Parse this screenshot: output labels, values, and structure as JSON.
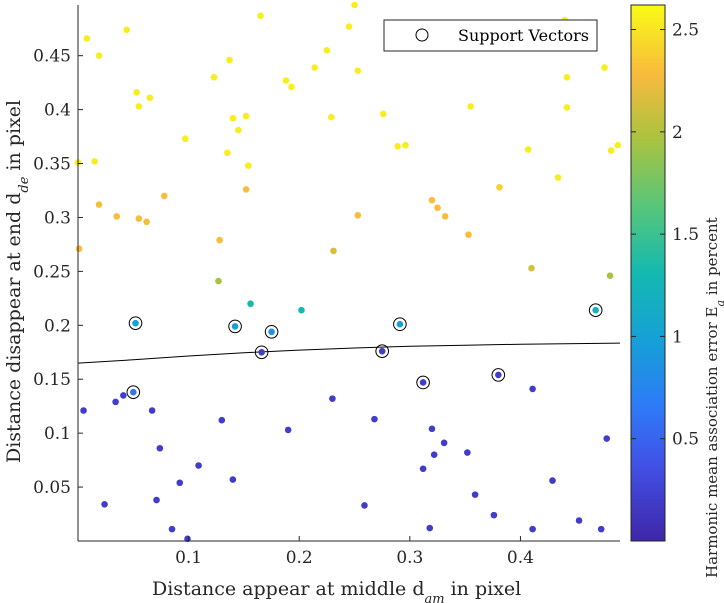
{
  "chart_data": {
    "type": "scatter",
    "xlabel": "Distance appear at middle d",
    "xlabel_sub": "am",
    "xlabel_suffix": " in pixel",
    "ylabel": "Distance disappear at end d",
    "ylabel_sub": "de",
    "ylabel_suffix": " in pixel",
    "colorbar_label": "Harmonic mean association error E",
    "colorbar_label_sub": "a",
    "colorbar_label_suffix": " in percent",
    "xlim": [
      0.0,
      0.49
    ],
    "ylim": [
      0.0,
      0.497
    ],
    "clim": [
      0.0,
      2.62
    ],
    "colormap": "parula",
    "xticks": [
      0.1,
      0.2,
      0.3,
      0.4
    ],
    "xtick_labels": [
      "0.1",
      "0.2",
      "0.3",
      "0.4"
    ],
    "yticks": [
      0.05,
      0.1,
      0.15,
      0.2,
      0.25,
      0.3,
      0.35,
      0.4,
      0.45
    ],
    "ytick_labels": [
      "0.05",
      "0.1",
      "0.15",
      "0.2",
      "0.25",
      "0.3",
      "0.35",
      "0.4",
      "0.45"
    ],
    "cticks": [
      0.5,
      1.0,
      1.5,
      2.0,
      2.5
    ],
    "ctick_labels": [
      "0.5",
      "1",
      "1.5",
      "2",
      "2.5"
    ],
    "legend": {
      "entries": [
        "Support Vectors"
      ],
      "location": "top-right"
    },
    "points": [
      {
        "x": 0.008,
        "y": 0.466,
        "c": 2.55
      },
      {
        "x": 0.019,
        "y": 0.45,
        "c": 2.55
      },
      {
        "x": 0.044,
        "y": 0.474,
        "c": 2.55
      },
      {
        "x": 0.053,
        "y": 0.416,
        "c": 2.55
      },
      {
        "x": 0.065,
        "y": 0.411,
        "c": 2.55
      },
      {
        "x": 0.055,
        "y": 0.403,
        "c": 2.55
      },
      {
        "x": 0.0,
        "y": 0.351,
        "c": 2.55
      },
      {
        "x": 0.015,
        "y": 0.352,
        "c": 2.55
      },
      {
        "x": 0.019,
        "y": 0.312,
        "c": 2.3
      },
      {
        "x": 0.035,
        "y": 0.301,
        "c": 2.3
      },
      {
        "x": 0.055,
        "y": 0.299,
        "c": 2.3
      },
      {
        "x": 0.062,
        "y": 0.296,
        "c": 2.3
      },
      {
        "x": 0.078,
        "y": 0.32,
        "c": 2.3
      },
      {
        "x": 0.001,
        "y": 0.271,
        "c": 2.3
      },
      {
        "x": 0.128,
        "y": 0.279,
        "c": 2.3
      },
      {
        "x": 0.127,
        "y": 0.241,
        "c": 1.95
      },
      {
        "x": 0.156,
        "y": 0.22,
        "c": 1.3
      },
      {
        "x": 0.202,
        "y": 0.214,
        "c": 1.3
      },
      {
        "x": 0.052,
        "y": 0.202,
        "c": 1.0,
        "sv": true
      },
      {
        "x": 0.142,
        "y": 0.199,
        "c": 1.0,
        "sv": true
      },
      {
        "x": 0.175,
        "y": 0.194,
        "c": 0.85,
        "sv": true
      },
      {
        "x": 0.291,
        "y": 0.201,
        "c": 1.0,
        "sv": true
      },
      {
        "x": 0.468,
        "y": 0.214,
        "c": 1.2,
        "sv": true
      },
      {
        "x": 0.166,
        "y": 0.175,
        "c": 0.2,
        "sv": true
      },
      {
        "x": 0.275,
        "y": 0.176,
        "c": 0.2,
        "sv": true
      },
      {
        "x": 0.05,
        "y": 0.138,
        "c": 0.6,
        "sv": true
      },
      {
        "x": 0.312,
        "y": 0.147,
        "c": 0.2,
        "sv": true
      },
      {
        "x": 0.38,
        "y": 0.154,
        "c": 0.2,
        "sv": true
      },
      {
        "x": 0.097,
        "y": 0.373,
        "c": 2.55
      },
      {
        "x": 0.123,
        "y": 0.43,
        "c": 2.55
      },
      {
        "x": 0.137,
        "y": 0.446,
        "c": 2.55
      },
      {
        "x": 0.14,
        "y": 0.392,
        "c": 2.55
      },
      {
        "x": 0.145,
        "y": 0.381,
        "c": 2.55
      },
      {
        "x": 0.135,
        "y": 0.36,
        "c": 2.55
      },
      {
        "x": 0.152,
        "y": 0.394,
        "c": 2.55
      },
      {
        "x": 0.154,
        "y": 0.348,
        "c": 2.55
      },
      {
        "x": 0.152,
        "y": 0.326,
        "c": 2.3
      },
      {
        "x": 0.165,
        "y": 0.487,
        "c": 2.55
      },
      {
        "x": 0.188,
        "y": 0.427,
        "c": 2.55
      },
      {
        "x": 0.193,
        "y": 0.421,
        "c": 2.55
      },
      {
        "x": 0.214,
        "y": 0.439,
        "c": 2.55
      },
      {
        "x": 0.225,
        "y": 0.455,
        "c": 2.55
      },
      {
        "x": 0.229,
        "y": 0.393,
        "c": 2.55
      },
      {
        "x": 0.245,
        "y": 0.477,
        "c": 2.55
      },
      {
        "x": 0.25,
        "y": 0.497,
        "c": 2.55
      },
      {
        "x": 0.253,
        "y": 0.436,
        "c": 2.55
      },
      {
        "x": 0.253,
        "y": 0.302,
        "c": 2.3
      },
      {
        "x": 0.231,
        "y": 0.269,
        "c": 2.15
      },
      {
        "x": 0.276,
        "y": 0.396,
        "c": 2.55
      },
      {
        "x": 0.289,
        "y": 0.366,
        "c": 2.55
      },
      {
        "x": 0.296,
        "y": 0.367,
        "c": 2.55
      },
      {
        "x": 0.32,
        "y": 0.316,
        "c": 2.3
      },
      {
        "x": 0.325,
        "y": 0.309,
        "c": 2.3
      },
      {
        "x": 0.332,
        "y": 0.301,
        "c": 2.3
      },
      {
        "x": 0.355,
        "y": 0.403,
        "c": 2.55
      },
      {
        "x": 0.353,
        "y": 0.284,
        "c": 2.3
      },
      {
        "x": 0.381,
        "y": 0.328,
        "c": 2.4
      },
      {
        "x": 0.407,
        "y": 0.363,
        "c": 2.55
      },
      {
        "x": 0.41,
        "y": 0.253,
        "c": 2.15
      },
      {
        "x": 0.434,
        "y": 0.337,
        "c": 2.55
      },
      {
        "x": 0.44,
        "y": 0.483,
        "c": 2.55
      },
      {
        "x": 0.442,
        "y": 0.43,
        "c": 2.55
      },
      {
        "x": 0.442,
        "y": 0.402,
        "c": 2.55
      },
      {
        "x": 0.476,
        "y": 0.439,
        "c": 2.55
      },
      {
        "x": 0.482,
        "y": 0.362,
        "c": 2.55
      },
      {
        "x": 0.488,
        "y": 0.367,
        "c": 2.55
      },
      {
        "x": 0.481,
        "y": 0.246,
        "c": 1.95
      },
      {
        "x": 0.005,
        "y": 0.121,
        "c": 0.2
      },
      {
        "x": 0.024,
        "y": 0.034,
        "c": 0.2
      },
      {
        "x": 0.034,
        "y": 0.129,
        "c": 0.2
      },
      {
        "x": 0.041,
        "y": 0.135,
        "c": 0.2
      },
      {
        "x": 0.067,
        "y": 0.121,
        "c": 0.2
      },
      {
        "x": 0.074,
        "y": 0.086,
        "c": 0.2
      },
      {
        "x": 0.071,
        "y": 0.038,
        "c": 0.2
      },
      {
        "x": 0.085,
        "y": 0.011,
        "c": 0.2
      },
      {
        "x": 0.092,
        "y": 0.054,
        "c": 0.2
      },
      {
        "x": 0.109,
        "y": 0.07,
        "c": 0.2
      },
      {
        "x": 0.099,
        "y": 0.002,
        "c": 0.2
      },
      {
        "x": 0.13,
        "y": 0.112,
        "c": 0.2
      },
      {
        "x": 0.14,
        "y": 0.057,
        "c": 0.2
      },
      {
        "x": 0.19,
        "y": 0.103,
        "c": 0.2
      },
      {
        "x": 0.23,
        "y": 0.132,
        "c": 0.2
      },
      {
        "x": 0.259,
        "y": 0.033,
        "c": 0.2
      },
      {
        "x": 0.268,
        "y": 0.113,
        "c": 0.2
      },
      {
        "x": 0.312,
        "y": 0.067,
        "c": 0.2
      },
      {
        "x": 0.318,
        "y": 0.012,
        "c": 0.2
      },
      {
        "x": 0.32,
        "y": 0.104,
        "c": 0.2
      },
      {
        "x": 0.322,
        "y": 0.08,
        "c": 0.2
      },
      {
        "x": 0.331,
        "y": 0.091,
        "c": 0.2
      },
      {
        "x": 0.352,
        "y": 0.082,
        "c": 0.2
      },
      {
        "x": 0.359,
        "y": 0.043,
        "c": 0.2
      },
      {
        "x": 0.376,
        "y": 0.024,
        "c": 0.2
      },
      {
        "x": 0.411,
        "y": 0.141,
        "c": 0.2
      },
      {
        "x": 0.411,
        "y": 0.011,
        "c": 0.2
      },
      {
        "x": 0.429,
        "y": 0.056,
        "c": 0.2
      },
      {
        "x": 0.453,
        "y": 0.019,
        "c": 0.2
      },
      {
        "x": 0.473,
        "y": 0.011,
        "c": 0.2
      },
      {
        "x": 0.478,
        "y": 0.095,
        "c": 0.2
      }
    ],
    "decision_boundary": {
      "x": [
        0.0,
        0.05,
        0.1,
        0.15,
        0.2,
        0.25,
        0.3,
        0.35,
        0.4,
        0.45,
        0.49
      ],
      "y": [
        0.165,
        0.168,
        0.1715,
        0.1745,
        0.177,
        0.179,
        0.1805,
        0.1815,
        0.1825,
        0.183,
        0.1835
      ]
    }
  }
}
